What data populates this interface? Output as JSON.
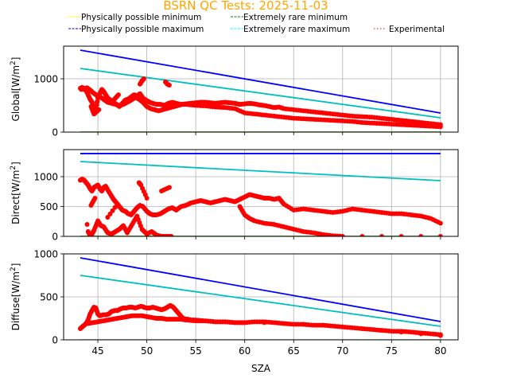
{
  "chart_data": {
    "type": "line",
    "title": "BSRN QC Tests: 2025-11-03",
    "title_color": "#ffa500",
    "xlabel": "SZA",
    "xlim": [
      41.5,
      81.8
    ],
    "xticks": [
      45,
      50,
      55,
      60,
      65,
      70,
      75,
      80
    ],
    "grid": true,
    "legend": {
      "placement": "top",
      "entries": [
        {
          "label": "Physically possible minimum",
          "color": "#ffff00",
          "style": "dashed"
        },
        {
          "label": "Extremely rare minimum",
          "color": "#008000",
          "style": "dashed"
        },
        {
          "label": "Physically possible maximum",
          "color": "#0000ff",
          "style": "dashed"
        },
        {
          "label": "Extremely rare maximum",
          "color": "#00ffff",
          "style": "dashed"
        },
        {
          "label": "Experimental",
          "color": "#ff0000",
          "style": "dotted"
        }
      ]
    },
    "panels": [
      {
        "name": "global",
        "ylabel": "Global[W/m²]",
        "ylim": [
          0,
          1612
        ],
        "yticks": [
          0,
          1000
        ],
        "series": [
          {
            "name": "Physically possible minimum",
            "color": "#ffff00",
            "x": [
              43.2,
              80
            ],
            "y": [
              -4,
              -4
            ]
          },
          {
            "name": "Extremely rare minimum",
            "color": "#008000",
            "x": [
              43.2,
              80
            ],
            "y": [
              -2,
              -2
            ]
          },
          {
            "name": "Physically possible maximum",
            "color": "#0000ff",
            "x": [
              43.2,
              80
            ],
            "y": [
              1537,
              358
            ]
          },
          {
            "name": "Extremely rare maximum",
            "color": "#00bfbf",
            "x": [
              43.2,
              80
            ],
            "y": [
              1194,
              269
            ]
          },
          {
            "name": "Experimental",
            "color": "#ff0000",
            "kind": "scatter",
            "x": [
              43.2,
              43.4,
              43.6,
              43.8,
              44.0,
              44.2,
              44.4,
              44.6,
              44.8,
              45.0,
              45.2,
              45.4,
              45.6,
              45.8,
              46.0,
              46.3,
              46.6,
              46.9,
              47.2,
              47.5,
              47.8,
              48.1,
              48.4,
              48.7,
              49.0,
              49.3,
              49.6,
              50.0,
              50.3,
              50.6,
              51.0,
              51.4,
              51.8,
              52.2,
              52.6,
              53.0,
              53.5,
              54.0,
              54.5,
              55.0,
              55.5,
              56.0,
              56.5,
              57.0,
              57.5,
              58.0,
              58.5,
              59.0,
              59.5,
              60.0,
              60.5,
              61.0,
              61.5,
              62.0,
              62.5,
              63.0,
              63.5,
              64.0,
              65.0,
              66.0,
              67.0,
              68.0,
              69.0,
              70.0,
              71.0,
              72.0,
              73.0,
              74.0,
              75.0,
              76.0,
              77.0,
              78.0,
              79.0,
              80.0,
              43.3,
              43.6,
              43.9,
              44.2,
              44.5,
              44.8,
              45.1,
              45.4,
              45.7,
              46.0,
              46.4,
              46.8,
              47.2,
              47.6,
              48.0,
              48.4,
              48.8,
              49.2,
              49.6,
              50.0,
              50.4,
              50.8,
              51.2,
              51.6,
              52.0,
              52.4,
              52.8,
              53.2,
              53.6,
              54.0,
              55.0,
              56.0,
              57.0,
              58.0,
              59.0,
              60.0,
              61.0,
              62.0,
              63.0,
              64.0,
              65.0,
              66.0,
              67.0,
              68.0,
              69.0,
              70.0,
              71.0,
              72.0,
              73.0,
              74.0,
              75.0,
              76.0,
              77.0,
              78.0,
              79.0,
              80.0,
              49.3,
              49.5,
              49.7,
              51.9,
              52.1,
              52.3,
              44.3,
              44.6,
              45.1,
              44.9,
              46.7,
              47.1
            ],
            "y": [
              820,
              840,
              800,
              780,
              700,
              620,
              560,
              420,
              380,
              640,
              720,
              800,
              760,
              700,
              640,
              600,
              560,
              520,
              480,
              540,
              600,
              620,
              660,
              700,
              680,
              720,
              640,
              590,
              560,
              540,
              520,
              520,
              500,
              540,
              560,
              540,
              520,
              530,
              540,
              550,
              560,
              560,
              550,
              540,
              550,
              560,
              550,
              540,
              520,
              530,
              540,
              530,
              510,
              500,
              480,
              460,
              470,
              440,
              420,
              400,
              380,
              360,
              340,
              320,
              300,
              290,
              280,
              260,
              240,
              220,
              200,
              180,
              160,
              140,
              800,
              820,
              830,
              790,
              740,
              700,
              660,
              640,
              600,
              560,
              540,
              520,
              500,
              520,
              560,
              600,
              650,
              620,
              560,
              480,
              440,
              420,
              400,
              420,
              440,
              460,
              480,
              500,
              520,
              520,
              500,
              490,
              470,
              460,
              440,
              360,
              340,
              320,
              300,
              280,
              260,
              250,
              240,
              230,
              220,
              210,
              200,
              180,
              170,
              160,
              150,
              140,
              130,
              120,
              110,
              100,
              900,
              960,
              1000,
              940,
              900,
              880,
              480,
              340,
              420,
              560,
              620,
              700
            ]
          }
        ]
      },
      {
        "name": "direct",
        "ylabel": "Direct[W/m²]",
        "ylim": [
          0,
          1453
        ],
        "yticks": [
          0,
          500,
          1000
        ],
        "series": [
          {
            "name": "Physically possible minimum",
            "color": "#ffff00",
            "x": [
              43.2,
              80
            ],
            "y": [
              -4,
              -4
            ]
          },
          {
            "name": "Extremely rare minimum",
            "color": "#008000",
            "x": [
              43.2,
              80
            ],
            "y": [
              -2,
              -2
            ]
          },
          {
            "name": "Physically possible maximum",
            "color": "#0000ff",
            "x": [
              43.2,
              80
            ],
            "y": [
              1387,
              1387
            ]
          },
          {
            "name": "Extremely rare maximum",
            "color": "#00bfbf",
            "x": [
              43.2,
              80
            ],
            "y": [
              1253,
              933
            ]
          },
          {
            "name": "Experimental",
            "color": "#ff0000",
            "kind": "scatter",
            "x": [
              43.2,
              43.4,
              43.6,
              43.8,
              44.0,
              44.2,
              44.4,
              44.6,
              44.8,
              45.0,
              45.2,
              45.4,
              45.6,
              45.8,
              46.0,
              46.3,
              46.6,
              46.9,
              47.2,
              47.5,
              47.8,
              48.1,
              48.4,
              48.7,
              49.0,
              49.3,
              49.6,
              50.0,
              50.3,
              50.6,
              51.0,
              51.4,
              51.8,
              52.2,
              52.6,
              53.0,
              53.5,
              54.0,
              54.5,
              55.0,
              55.5,
              56.0,
              56.5,
              57.0,
              57.5,
              58.0,
              58.5,
              59.0,
              59.5,
              60.0,
              60.5,
              61.0,
              61.5,
              62.0,
              62.5,
              63.0,
              63.5,
              64.0,
              65.0,
              66.0,
              67.0,
              68.0,
              69.0,
              70.0,
              71.0,
              72.0,
              73.0,
              74.0,
              75.0,
              76.0,
              77.0,
              78.0,
              79.0,
              80.0,
              44.0,
              44.2,
              44.4,
              44.6,
              45.0,
              45.3,
              45.6,
              46.0,
              46.4,
              46.8,
              47.2,
              47.6,
              48.0,
              48.5,
              49.0,
              49.5,
              50.0,
              50.5,
              51.0,
              51.5,
              52.0,
              52.5,
              59.5,
              60.0,
              60.5,
              61.0,
              62.0,
              63.0,
              64.0,
              65.0,
              66.0,
              67.0,
              68.0,
              69.0,
              70.0,
              72.0,
              74.0,
              76.0,
              78.0,
              80.0,
              49.2,
              49.4,
              50.0,
              51.5,
              52.3,
              44.3,
              44.7,
              46.0,
              47.0,
              43.9
            ],
            "y": [
              940,
              960,
              940,
              900,
              860,
              800,
              760,
              820,
              840,
              860,
              800,
              760,
              820,
              840,
              780,
              700,
              620,
              560,
              500,
              440,
              420,
              380,
              360,
              420,
              480,
              520,
              500,
              420,
              380,
              360,
              360,
              380,
              420,
              460,
              480,
              440,
              500,
              520,
              560,
              580,
              600,
              580,
              560,
              580,
              600,
              620,
              600,
              580,
              620,
              660,
              700,
              680,
              660,
              640,
              640,
              620,
              640,
              540,
              440,
              460,
              440,
              420,
              400,
              420,
              460,
              440,
              420,
              400,
              380,
              380,
              360,
              340,
              300,
              220,
              80,
              20,
              40,
              100,
              260,
              180,
              160,
              60,
              40,
              80,
              120,
              180,
              60,
              200,
              340,
              120,
              40,
              80,
              20,
              0,
              0,
              0,
              500,
              360,
              300,
              260,
              220,
              200,
              160,
              120,
              80,
              60,
              30,
              10,
              0,
              0,
              0,
              0,
              0,
              0,
              900,
              860,
              640,
              760,
              820,
              520,
              640,
              320,
              540,
              200
            ]
          }
        ]
      },
      {
        "name": "diffuse",
        "ylabel": "Diffuse[W/m²]",
        "ylim": [
          0,
          1000
        ],
        "yticks": [
          0,
          500,
          1000
        ],
        "series": [
          {
            "name": "Physically possible minimum",
            "color": "#ffff00",
            "x": [
              43.2,
              80
            ],
            "y": [
              -4,
              -4
            ]
          },
          {
            "name": "Extremely rare minimum",
            "color": "#008000",
            "x": [
              43.2,
              80
            ],
            "y": [
              -2,
              -2
            ]
          },
          {
            "name": "Physically possible maximum",
            "color": "#0000ff",
            "x": [
              43.2,
              80
            ],
            "y": [
              954,
              213
            ]
          },
          {
            "name": "Extremely rare maximum",
            "color": "#00bfbf",
            "x": [
              43.2,
              80
            ],
            "y": [
              750,
              157
            ]
          },
          {
            "name": "Experimental",
            "color": "#ff0000",
            "kind": "scatter",
            "x": [
              43.2,
              43.4,
              43.6,
              43.8,
              44.0,
              44.2,
              44.4,
              44.6,
              44.8,
              45.0,
              45.2,
              45.5,
              45.8,
              46.1,
              46.4,
              46.7,
              47.0,
              47.3,
              47.6,
              47.9,
              48.2,
              48.5,
              48.8,
              49.1,
              49.4,
              49.7,
              50.0,
              50.3,
              50.6,
              50.9,
              51.2,
              51.5,
              51.8,
              52.1,
              52.4,
              52.7,
              53.0,
              53.3,
              53.6,
              53.9,
              54.2,
              54.5,
              55.0,
              56.0,
              57.0,
              58.0,
              59.0,
              60.0,
              61.0,
              62.0,
              63.0,
              64.0,
              65.0,
              66.0,
              67.0,
              68.0,
              69.0,
              70.0,
              71.0,
              72.0,
              73.0,
              74.0,
              75.0,
              76.0,
              77.0,
              78.0,
              79.0,
              80.0,
              44.0,
              44.5,
              45.0,
              45.5,
              46.0,
              46.5,
              47.0,
              47.5,
              48.0,
              48.5,
              49.0,
              49.5,
              50.0,
              50.5,
              51.0,
              51.5,
              52.0,
              52.5,
              53.0,
              53.5,
              54.0,
              55.0,
              56.0,
              57.0,
              58.0,
              59.0,
              60.0,
              62.0,
              64.0,
              66.0,
              68.0,
              70.0,
              72.0,
              74.0,
              76.0,
              78.0,
              80.0
            ],
            "y": [
              130,
              150,
              170,
              190,
              230,
              300,
              340,
              380,
              370,
              300,
              280,
              290,
              290,
              300,
              330,
              340,
              340,
              360,
              370,
              370,
              380,
              380,
              370,
              380,
              390,
              380,
              370,
              370,
              380,
              370,
              360,
              350,
              360,
              380,
              400,
              380,
              340,
              300,
              260,
              240,
              240,
              230,
              230,
              220,
              210,
              210,
              200,
              200,
              210,
              210,
              200,
              190,
              180,
              180,
              170,
              170,
              160,
              150,
              140,
              130,
              120,
              110,
              100,
              100,
              90,
              80,
              70,
              60,
              190,
              200,
              210,
              220,
              230,
              240,
              250,
              260,
              270,
              280,
              280,
              280,
              270,
              260,
              250,
              250,
              240,
              240,
              240,
              240,
              230,
              220,
              220,
              210,
              210,
              200,
              200,
              200,
              190,
              180,
              170,
              150,
              130,
              110,
              90,
              70,
              50
            ]
          }
        ]
      }
    ]
  }
}
